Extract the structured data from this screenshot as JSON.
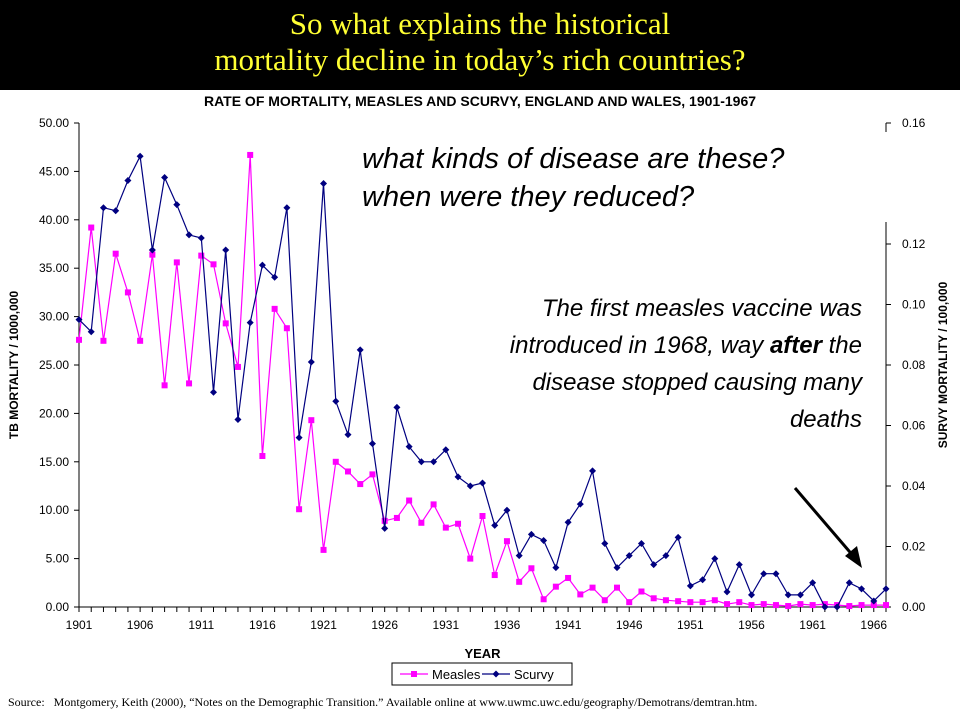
{
  "slide": {
    "title_line1": "So what explains the historical",
    "title_line2": "mortality decline in today’s rich countries?",
    "question_line1": "what kinds of disease are these?",
    "question_line2": "when were they reduced?",
    "note_part1": "The first measles vaccine was introduced in 1968, way ",
    "note_emphasis": "after",
    "note_part2": " the disease stopped causing many deaths",
    "source_label": "Source:",
    "source_text": "Montgomery, Keith (2000), “Notes on the Demographic Transition.”  Available online at www.uwmc.uwc.edu/geography/Demotrans/demtran.htm."
  },
  "colors": {
    "title_bg": "#000000",
    "title_text": "#ffff33",
    "measles": "#ff00ff",
    "scurvy": "#000080"
  },
  "chart_data": {
    "type": "line",
    "title": "RATE OF MORTALITY, MEASLES AND SCURVY, ENGLAND AND WALES, 1901-1967",
    "xlabel": "YEAR",
    "ylabel": "TB MORTALITY / 1000,000",
    "y2label": "SURVY MORTALITY / 100,000",
    "xlim": [
      1901,
      1967
    ],
    "x_ticks": [
      1901,
      1906,
      1911,
      1916,
      1921,
      1926,
      1931,
      1936,
      1941,
      1946,
      1951,
      1956,
      1961,
      1966
    ],
    "ylim": [
      0,
      50
    ],
    "y_ticks": [
      "0.00",
      "5.00",
      "10.00",
      "15.00",
      "20.00",
      "25.00",
      "30.00",
      "35.00",
      "40.00",
      "45.00",
      "50.00"
    ],
    "y2lim": [
      0,
      0.16
    ],
    "y2_ticks": [
      "0.00",
      "0.02",
      "0.04",
      "0.06",
      "0.08",
      "0.10",
      "0.12",
      "0.16"
    ],
    "legend_position": "bottom",
    "series": [
      {
        "name": "Measles",
        "axis": "left",
        "color": "#ff00ff",
        "x": [
          1901,
          1902,
          1903,
          1904,
          1905,
          1906,
          1907,
          1908,
          1909,
          1910,
          1911,
          1912,
          1913,
          1914,
          1915,
          1916,
          1917,
          1918,
          1919,
          1920,
          1921,
          1922,
          1923,
          1924,
          1925,
          1926,
          1927,
          1928,
          1929,
          1930,
          1931,
          1932,
          1933,
          1934,
          1935,
          1936,
          1937,
          1938,
          1939,
          1940,
          1941,
          1942,
          1943,
          1944,
          1945,
          1946,
          1947,
          1948,
          1949,
          1950,
          1951,
          1952,
          1953,
          1954,
          1955,
          1956,
          1957,
          1958,
          1959,
          1960,
          1961,
          1962,
          1963,
          1964,
          1965,
          1966,
          1967
        ],
        "values": [
          27.6,
          39.2,
          27.5,
          36.5,
          32.5,
          27.5,
          36.4,
          22.9,
          35.6,
          23.1,
          36.3,
          35.4,
          29.3,
          24.8,
          46.7,
          15.6,
          30.8,
          28.8,
          10.1,
          19.3,
          5.9,
          15.0,
          14.0,
          12.7,
          13.7,
          8.9,
          9.2,
          11.0,
          8.7,
          10.6,
          8.2,
          8.6,
          5.0,
          9.4,
          3.3,
          6.8,
          2.6,
          4.0,
          0.8,
          2.1,
          3.0,
          1.3,
          2.0,
          0.7,
          2.0,
          0.5,
          1.6,
          0.9,
          0.7,
          0.6,
          0.5,
          0.5,
          0.7,
          0.3,
          0.5,
          0.2,
          0.3,
          0.2,
          0.1,
          0.3,
          0.2,
          0.3,
          0.2,
          0.1,
          0.2,
          0.2,
          0.2
        ]
      },
      {
        "name": "Scurvy",
        "axis": "right",
        "color": "#000080",
        "x": [
          1901,
          1902,
          1903,
          1904,
          1905,
          1906,
          1907,
          1908,
          1909,
          1910,
          1911,
          1912,
          1913,
          1914,
          1915,
          1916,
          1917,
          1918,
          1919,
          1920,
          1921,
          1922,
          1923,
          1924,
          1925,
          1926,
          1927,
          1928,
          1929,
          1930,
          1931,
          1932,
          1933,
          1934,
          1935,
          1936,
          1937,
          1938,
          1939,
          1940,
          1941,
          1942,
          1943,
          1944,
          1945,
          1946,
          1947,
          1948,
          1949,
          1950,
          1951,
          1952,
          1953,
          1954,
          1955,
          1956,
          1957,
          1958,
          1959,
          1960,
          1961,
          1962,
          1963,
          1964,
          1965,
          1966,
          1967
        ],
        "values": [
          0.095,
          0.091,
          0.132,
          0.131,
          0.141,
          0.149,
          0.118,
          0.142,
          0.133,
          0.123,
          0.122,
          0.071,
          0.118,
          0.062,
          0.094,
          0.113,
          0.109,
          0.132,
          0.056,
          0.081,
          0.14,
          0.068,
          0.057,
          0.085,
          0.054,
          0.026,
          0.066,
          0.053,
          0.048,
          0.048,
          0.052,
          0.043,
          0.04,
          0.041,
          0.027,
          0.032,
          0.017,
          0.024,
          0.022,
          0.013,
          0.028,
          0.034,
          0.045,
          0.021,
          0.013,
          0.017,
          0.021,
          0.014,
          0.017,
          0.023,
          0.007,
          0.009,
          0.016,
          0.005,
          0.014,
          0.004,
          0.011,
          0.011,
          0.004,
          0.004,
          0.008,
          0.0,
          0.0,
          0.008,
          0.006,
          0.002,
          0.006
        ]
      }
    ]
  }
}
